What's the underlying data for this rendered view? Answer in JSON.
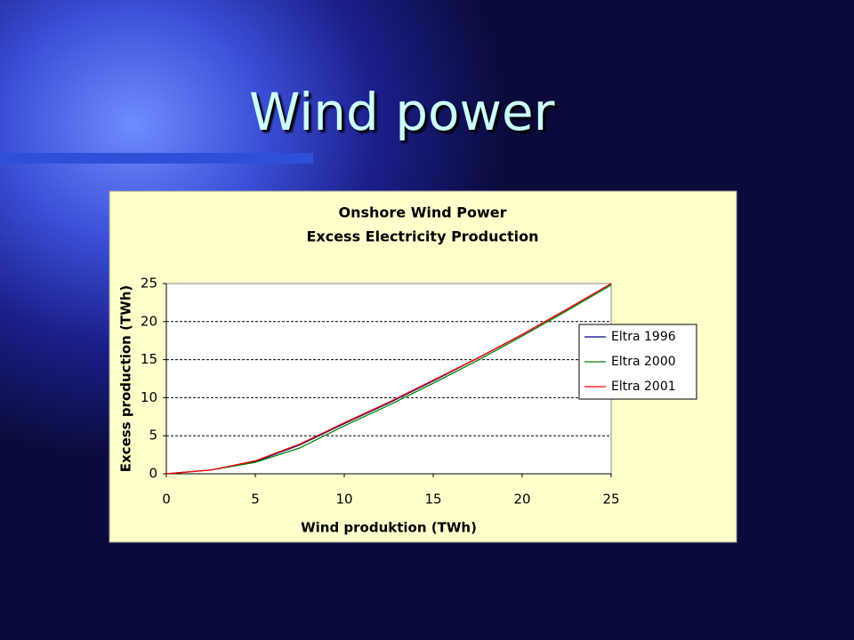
{
  "slide_title": "Wind power",
  "chart_data": {
    "type": "line",
    "title": "Onshore Wind Power",
    "subtitle": "Excess Electricity Production",
    "x_label": "Wind produktion (TWh)",
    "y_label": "Excess production (TWh)",
    "x": [
      0,
      2.5,
      5,
      7.5,
      10,
      12.5,
      15,
      17.5,
      20,
      22.5,
      25
    ],
    "series": [
      {
        "name": "Eltra 1996",
        "color": "#000080",
        "values": [
          0,
          0.5,
          1.6,
          3.8,
          6.6,
          9.3,
          12.2,
          15.2,
          18.3,
          21.6,
          25
        ]
      },
      {
        "name": "Eltra 2000",
        "color": "#008000",
        "values": [
          0,
          0.5,
          1.5,
          3.4,
          6.3,
          9.0,
          11.9,
          14.9,
          18.1,
          21.4,
          24.8
        ]
      },
      {
        "name": "Eltra 2001",
        "color": "#ff0000",
        "values": [
          0,
          0.5,
          1.7,
          3.9,
          6.7,
          9.4,
          12.3,
          15.2,
          18.3,
          21.6,
          25
        ]
      }
    ],
    "xlim": [
      0,
      25
    ],
    "xticks": [
      0,
      5,
      10,
      15,
      20,
      25
    ],
    "ylim": [
      0,
      25
    ],
    "yticks": [
      0,
      5,
      10,
      15,
      20,
      25
    ],
    "grid": true,
    "legend": "right"
  }
}
